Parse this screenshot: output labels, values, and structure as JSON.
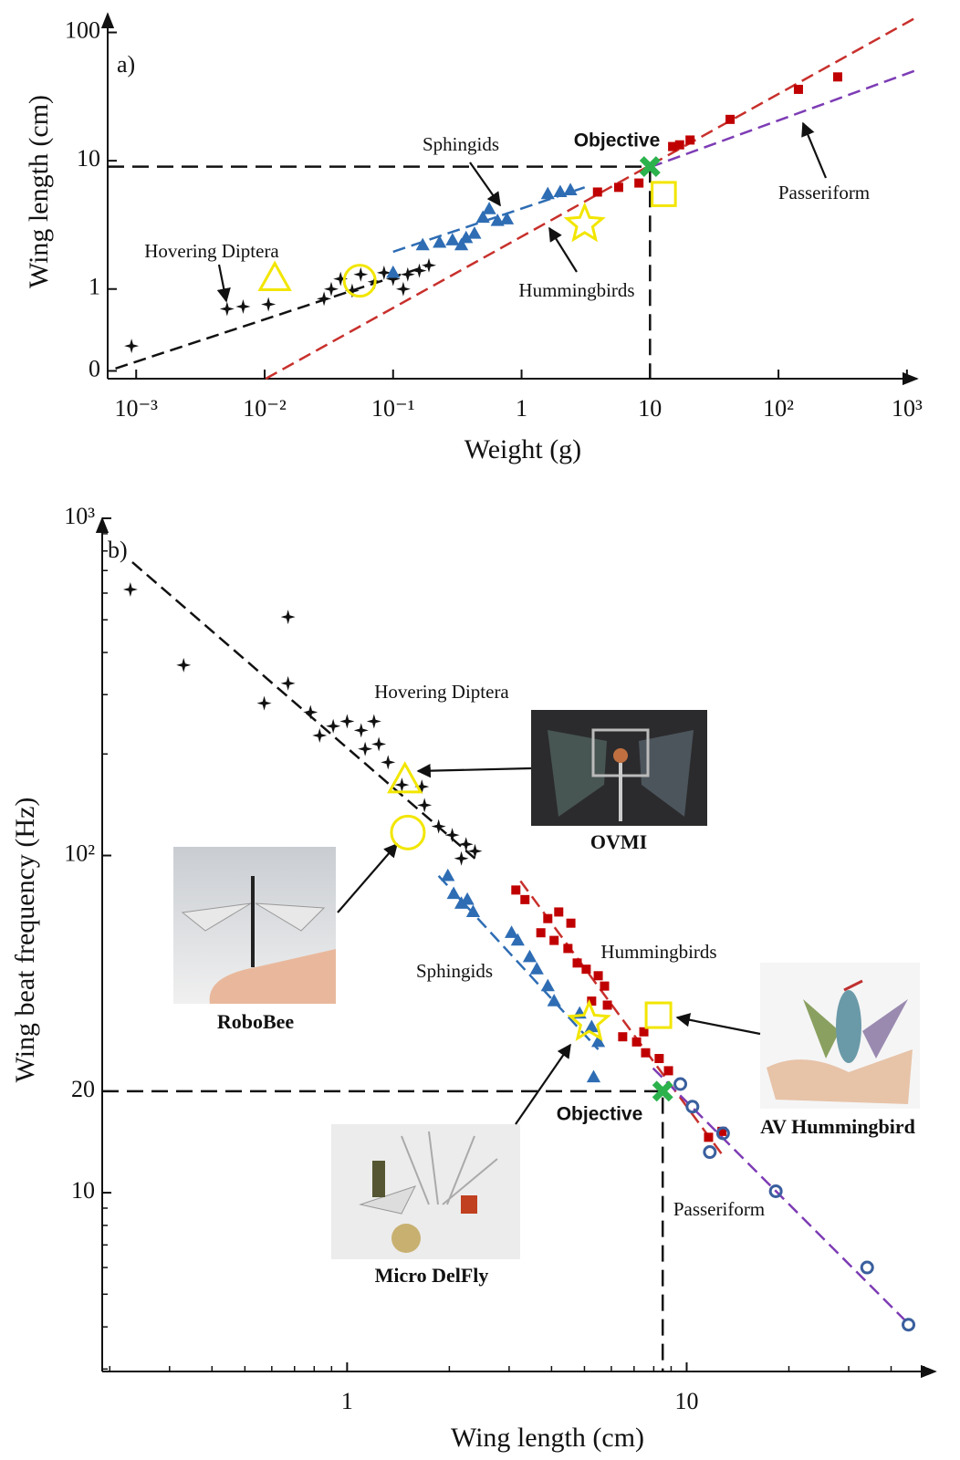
{
  "chart_data": [
    {
      "type": "scatter",
      "panel": "a)",
      "xlabel": "Weight (g)",
      "ylabel": "Wing length (cm)",
      "log_x": true,
      "log_y": true,
      "xlim": [
        0.0006,
        1200
      ],
      "ylim": [
        0.2,
        140
      ],
      "xticks": [
        {
          "value": 0.001,
          "label": "10⁻³"
        },
        {
          "value": 0.01,
          "label": "10⁻²"
        },
        {
          "value": 0.1,
          "label": "10⁻¹"
        },
        1,
        10,
        {
          "value": 100,
          "label": "10²"
        },
        {
          "value": 1000,
          "label": "10³"
        }
      ],
      "yticks": [
        {
          "value": 0.23,
          "label": "0"
        },
        1,
        10,
        100
      ],
      "series": [
        {
          "name": "Hovering Diptera",
          "marker": "plus",
          "color": "#111111",
          "x": [
            0.00092,
            0.0051,
            0.0068,
            0.0107,
            0.029,
            0.033,
            0.039,
            0.048,
            0.056,
            0.072,
            0.085,
            0.1,
            0.13,
            0.16,
            0.19,
            0.12
          ],
          "values": [
            0.36,
            0.7,
            0.73,
            0.76,
            0.84,
            1.0,
            1.2,
            0.97,
            1.3,
            1.14,
            1.34,
            1.2,
            1.3,
            1.39,
            1.53,
            1.0
          ],
          "fit": {
            "color": "#111111",
            "x": [
              0.00069,
              0.19
            ],
            "values": [
              0.24,
              1.53
            ]
          }
        },
        {
          "name": "Sphingids",
          "marker": "triangle",
          "color": "#2e6db4",
          "x": [
            0.1,
            0.17,
            0.23,
            0.29,
            0.37,
            0.43,
            0.5,
            0.56,
            0.65,
            0.77,
            1.6,
            2.0,
            2.4,
            0.34
          ],
          "values": [
            1.34,
            2.2,
            2.3,
            2.4,
            2.5,
            2.7,
            3.6,
            4.2,
            3.4,
            3.5,
            5.5,
            5.7,
            5.9,
            2.2
          ],
          "fit": {
            "color": "#2e6db4",
            "x": [
              0.1,
              3.1
            ],
            "values": [
              1.95,
              6.2
            ]
          }
        },
        {
          "name": "Hummingbirds",
          "marker": "square",
          "color": "#c00000",
          "x": [
            3.9,
            5.7,
            8.2,
            15,
            17,
            20.5,
            42,
            143,
            289
          ],
          "values": [
            5.7,
            6.2,
            6.7,
            12.9,
            13.3,
            14.5,
            21,
            36,
            45
          ],
          "fit": {
            "color": "#c8302c",
            "x": [
              0.0102,
              1200
            ],
            "values": [
              0.2,
              132
            ]
          }
        },
        {
          "name": "Passeriform",
          "marker": "circle",
          "color": "#3a5f9e",
          "x": [],
          "values": [],
          "fit": {
            "color": "#7d3cb5",
            "x": [
              10,
              1200
            ],
            "values": [
              8.9,
              51
            ]
          }
        }
      ],
      "robot_color": "#f2e600",
      "robots": [
        {
          "marker": "triangle",
          "x": 0.012,
          "value": 1.2
        },
        {
          "marker": "circle",
          "x": 0.055,
          "value": 1.16
        },
        {
          "marker": "star",
          "x": 3.1,
          "value": 3.2
        },
        {
          "marker": "square",
          "x": 12.8,
          "value": 5.5
        }
      ],
      "objective": {
        "label": "Objective",
        "x": 10,
        "value": 9,
        "color": "#2bb24c"
      }
    },
    {
      "type": "scatter",
      "panel": "b)",
      "xlabel": "Wing length (cm)",
      "ylabel": "Wing beat frequency (Hz)",
      "log_x": true,
      "log_y": true,
      "xlim": [
        0.19,
        54
      ],
      "ylim": [
        2.95,
        1000
      ],
      "xticks": [
        1,
        10
      ],
      "yticks": [
        {
          "value": 1000,
          "label": "10³"
        },
        {
          "value": 100,
          "label": "10²"
        },
        20,
        10
      ],
      "xminorticks": [
        0.2,
        0.3,
        0.4,
        0.5,
        0.6,
        0.7,
        0.8,
        0.9,
        2,
        3,
        4,
        5,
        6,
        7,
        8,
        9,
        20,
        30,
        40,
        50
      ],
      "yminorticks": [
        200,
        300,
        400,
        500,
        600,
        700,
        800,
        900,
        3,
        4,
        5,
        6,
        7,
        8,
        9
      ],
      "series": [
        {
          "name": "Hovering Diptera",
          "marker": "plus",
          "color": "#111111",
          "x": [
            0.23,
            0.33,
            0.67,
            0.57,
            0.67,
            0.78,
            0.83,
            0.91,
            1.0,
            1.1,
            1.2,
            1.24,
            1.32,
            1.45,
            1.66,
            1.69,
            1.86,
            2.04,
            2.24,
            2.38,
            2.17,
            1.13
          ],
          "values": [
            615,
            367,
            510,
            283,
            324,
            266,
            227,
            242,
            250,
            235,
            250,
            214,
            189,
            162,
            160,
            141,
            122,
            115,
            108,
            103,
            98,
            207
          ],
          "fit": {
            "color": "#111111",
            "x": [
              0.233,
              2.38
            ],
            "values": [
              741,
              98
            ]
          }
        },
        {
          "name": "Sphingids",
          "marker": "triangle",
          "color": "#2e6db4",
          "x": [
            1.98,
            2.06,
            2.17,
            2.26,
            2.35,
            3.05,
            3.18,
            3.45,
            3.62,
            3.9,
            4.07,
            4.84,
            5.25,
            5.49,
            5.32
          ],
          "values": [
            87,
            77,
            72,
            74,
            68,
            59,
            56,
            50,
            46,
            41,
            37,
            34,
            31,
            28,
            22
          ],
          "fit": {
            "color": "#2e6db4",
            "x": [
              1.86,
              5.49
            ],
            "values": [
              87,
              26.6
            ]
          }
        },
        {
          "name": "Hummingbirds",
          "marker": "square",
          "color": "#c00000",
          "x": [
            3.14,
            3.34,
            3.9,
            4.2,
            4.56,
            3.72,
            4.07,
            4.47,
            4.76,
            5.06,
            5.49,
            5.73,
            5.25,
            5.84,
            6.48,
            7.12,
            7.57,
            8.3,
            8.84,
            7.48,
            11.6,
            12.7
          ],
          "values": [
            79,
            74,
            65,
            68,
            63,
            59,
            56,
            53,
            48,
            46,
            44,
            41,
            37,
            36,
            29,
            28,
            26,
            25,
            23,
            30,
            14.6,
            15.2
          ],
          "fit": {
            "color": "#c8302c",
            "x": [
              3.24,
              12.7
            ],
            "values": [
              84,
              13
            ]
          }
        },
        {
          "name": "Passeriform",
          "marker": "circle",
          "color": "#3a5f9e",
          "x": [
            9.58,
            10.4,
            11.7,
            12.8,
            18.3,
            34,
            45
          ],
          "values": [
            21,
            18,
            13.2,
            15.0,
            10.1,
            6.0,
            4.06
          ],
          "fit": {
            "color": "#7d3cb5",
            "x": [
              7.96,
              45.3
            ],
            "values": [
              23.4,
              4.06
            ]
          }
        }
      ],
      "robot_color": "#f2e600",
      "robots": [
        {
          "name": "OVMI",
          "marker": "triangle",
          "x": 1.48,
          "value": 167
        },
        {
          "name": "RoboBee",
          "marker": "circle",
          "x": 1.51,
          "value": 117
        },
        {
          "name": "Micro DelFly",
          "marker": "star",
          "x": 5.16,
          "value": 32
        },
        {
          "name": "AV Hummingbird",
          "marker": "square",
          "x": 8.26,
          "value": 33.6
        }
      ],
      "objective": {
        "label": "Objective",
        "x": 8.5,
        "value": 20,
        "color": "#2bb24c"
      }
    }
  ]
}
